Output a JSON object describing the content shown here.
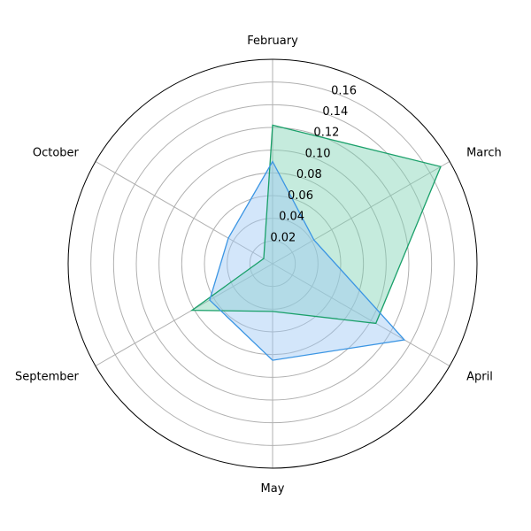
{
  "chart_data": {
    "type": "radar",
    "categories": [
      "February",
      "March",
      "April",
      "May",
      "September",
      "October"
    ],
    "rlim": [
      0,
      0.18
    ],
    "rticks": [
      "0.02",
      "0.04",
      "0.06",
      "0.08",
      "0.10",
      "0.12",
      "0.14",
      "0.16"
    ],
    "rtick_values": [
      0.02,
      0.04,
      0.06,
      0.08,
      0.1,
      0.12,
      0.14,
      0.16
    ],
    "grid": true,
    "series": [
      {
        "values": [
          0.122,
          0.171,
          0.105,
          0.042,
          0.082,
          0.009
        ],
        "color": "#1aa06a",
        "fill": "#7fd3b3"
      },
      {
        "values": [
          0.09,
          0.042,
          0.134,
          0.085,
          0.064,
          0.045
        ],
        "color": "#3b95e3",
        "fill": "#9ec8f5"
      }
    ]
  }
}
